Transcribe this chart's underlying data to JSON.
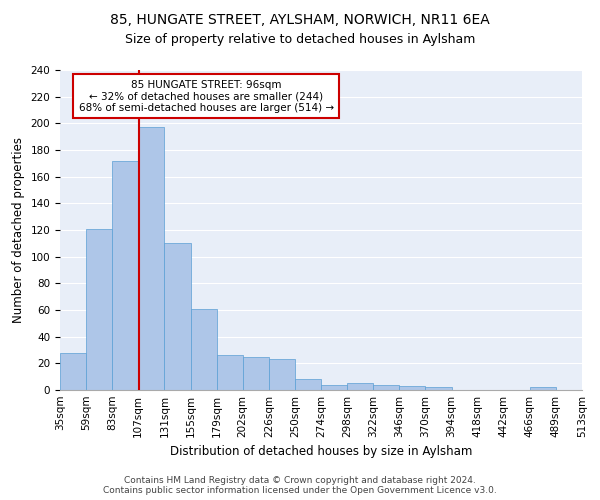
{
  "title1": "85, HUNGATE STREET, AYLSHAM, NORWICH, NR11 6EA",
  "title2": "Size of property relative to detached houses in Aylsham",
  "xlabel": "Distribution of detached houses by size in Aylsham",
  "ylabel": "Number of detached properties",
  "bin_labels": [
    "35sqm",
    "59sqm",
    "83sqm",
    "107sqm",
    "131sqm",
    "155sqm",
    "179sqm",
    "202sqm",
    "226sqm",
    "250sqm",
    "274sqm",
    "298sqm",
    "322sqm",
    "346sqm",
    "370sqm",
    "394sqm",
    "418sqm",
    "442sqm",
    "466sqm",
    "489sqm",
    "513sqm"
  ],
  "bar_values": [
    28,
    121,
    172,
    197,
    110,
    61,
    26,
    25,
    23,
    8,
    4,
    5,
    4,
    3,
    2,
    0,
    0,
    0,
    2,
    0
  ],
  "bar_color": "#aec6e8",
  "bar_edge_color": "#5a9fd4",
  "vline_color": "#cc0000",
  "annotation_text": "85 HUNGATE STREET: 96sqm\n← 32% of detached houses are smaller (244)\n68% of semi-detached houses are larger (514) →",
  "annotation_box_color": "white",
  "annotation_box_edge_color": "#cc0000",
  "ylim": [
    0,
    240
  ],
  "yticks": [
    0,
    20,
    40,
    60,
    80,
    100,
    120,
    140,
    160,
    180,
    200,
    220,
    240
  ],
  "footnote": "Contains HM Land Registry data © Crown copyright and database right 2024.\nContains public sector information licensed under the Open Government Licence v3.0.",
  "background_color": "#e8eef8",
  "grid_color": "white",
  "title1_fontsize": 10,
  "title2_fontsize": 9,
  "xlabel_fontsize": 8.5,
  "ylabel_fontsize": 8.5,
  "tick_fontsize": 7.5,
  "annotation_fontsize": 7.5,
  "footnote_fontsize": 6.5
}
